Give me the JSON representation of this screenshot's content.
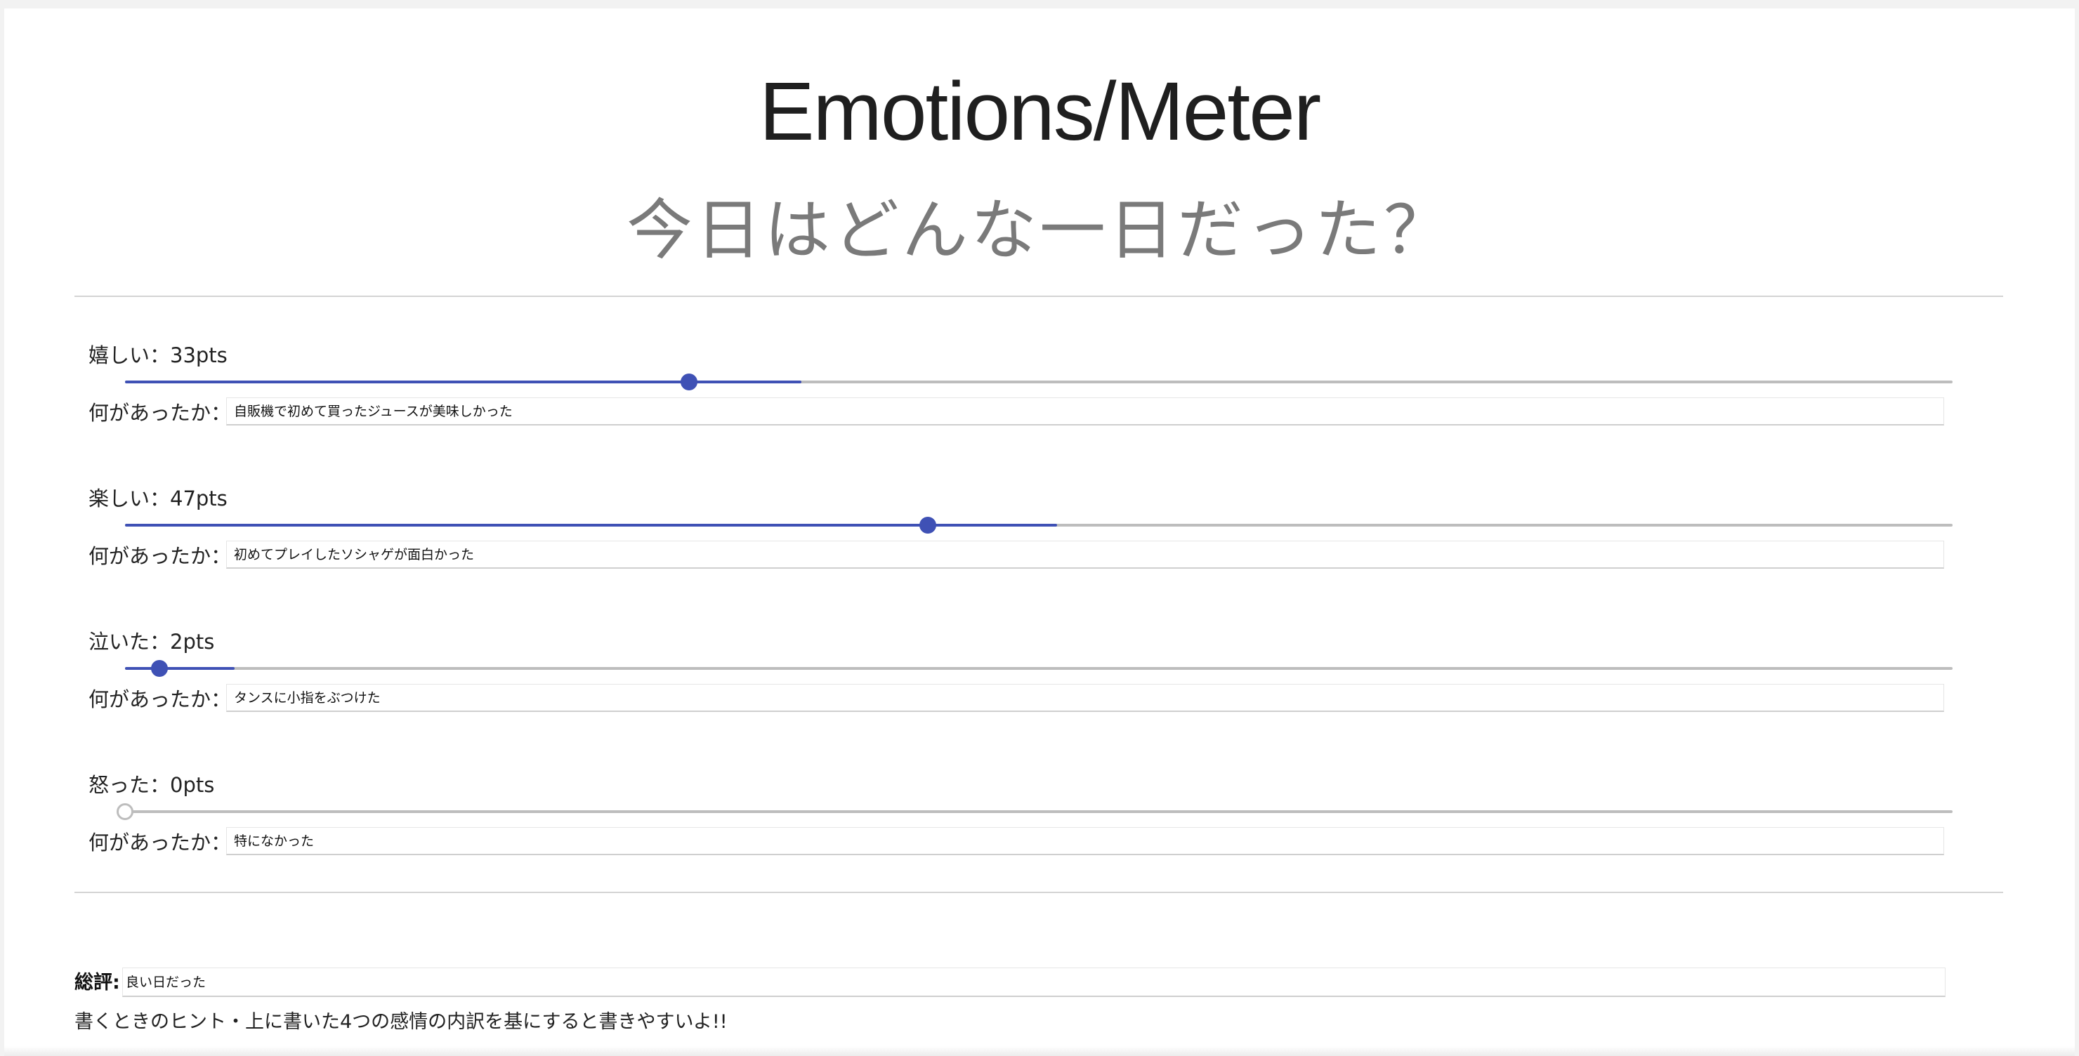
{
  "header": {
    "title": "Emotions/Meter",
    "subtitle": "今日はどんな一日だった？"
  },
  "emotions": [
    {
      "label": "嬉しい：33pts",
      "value": 33,
      "max": 100,
      "what_label": "何があったか：",
      "what_value": "自販機で初めて買ったジュースが美味しかった"
    },
    {
      "label": "楽しい：47pts",
      "value": 47,
      "max": 100,
      "what_label": "何があったか：",
      "what_value": "初めてプレイしたソシャゲが面白かった"
    },
    {
      "label": "泣いた：2pts",
      "value": 2,
      "max": 100,
      "what_label": "何があったか：",
      "what_value": "タンスに小指をぶつけた"
    },
    {
      "label": "怒った：0pts",
      "value": 0,
      "max": 100,
      "what_label": "何があったか：",
      "what_value": "特になかった"
    }
  ],
  "summary": {
    "label": "総評:",
    "value": "良い日だった",
    "hint": "書くときのヒント・上に書いた4つの感情の内訳を基にすると書きやすいよ!!"
  },
  "colors": {
    "accent": "#3f51b5",
    "track": "#bdbdbd"
  }
}
